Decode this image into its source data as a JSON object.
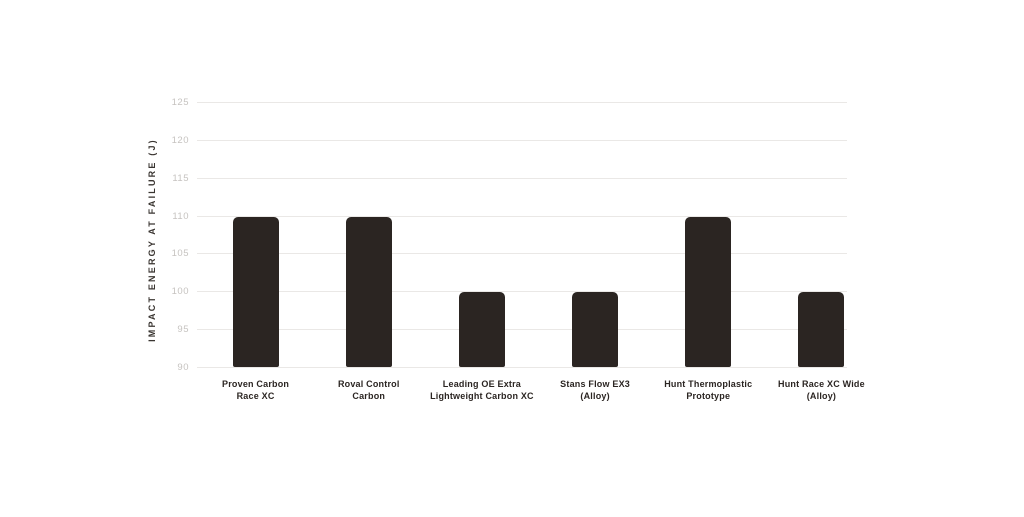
{
  "chart_data": {
    "type": "bar",
    "title": "",
    "xlabel": "",
    "ylabel": "IMPACT ENERGY AT FAILURE (J)",
    "categories": [
      "Proven Carbon Race XC",
      "Roval Control Carbon",
      "Leading OE Extra Lightweight Carbon XC",
      "Stans Flow EX3 (Alloy)",
      "Hunt Thermoplastic Prototype",
      "Hunt Race XC Wide (Alloy)"
    ],
    "category_lines": [
      [
        "Proven Carbon",
        "Race XC"
      ],
      [
        "Roval Control",
        "Carbon"
      ],
      [
        "Leading OE Extra",
        "Lightweight Carbon XC"
      ],
      [
        "Stans Flow EX3",
        "(Alloy)"
      ],
      [
        "Hunt Thermoplastic",
        "Prototype"
      ],
      [
        "Hunt Race XC Wide",
        "(Alloy)"
      ]
    ],
    "values": [
      110,
      110,
      100,
      100,
      110,
      100
    ],
    "ylim": [
      90,
      125
    ],
    "yticks": [
      90,
      95,
      100,
      105,
      110,
      115,
      120,
      125
    ],
    "grid": "horizontal",
    "legend": "none",
    "colors": {
      "bar": "#2b2522",
      "gridline": "#eae8e6",
      "tick_label": "#c6c3c0",
      "category_label": "#2b2522",
      "axis_title": "#3a3531",
      "background": "#ffffff"
    }
  }
}
